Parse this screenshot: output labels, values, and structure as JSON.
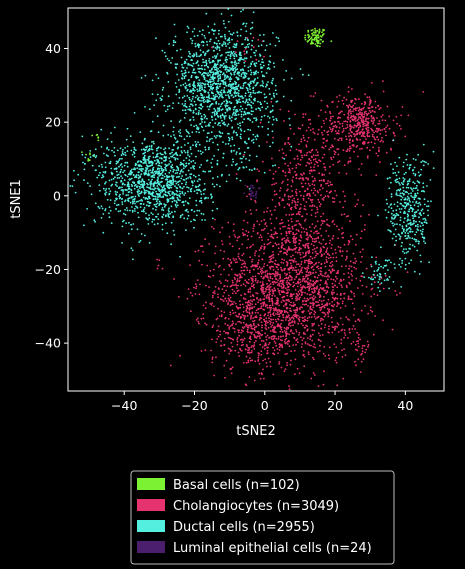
{
  "chart_data": {
    "type": "scatter",
    "xlabel": "tSNE2",
    "ylabel": "tSNE1",
    "xlim": [
      -56,
      51
    ],
    "ylim": [
      -53,
      51
    ],
    "xticks": [
      -40,
      -20,
      0,
      20,
      40
    ],
    "yticks": [
      40,
      20,
      0,
      -20,
      -40
    ],
    "xtick_labels": [
      "−40",
      "−20",
      "0",
      "20",
      "40"
    ],
    "ytick_labels": [
      "40",
      "20",
      "0",
      "−20",
      "−40"
    ],
    "legend_position": "below",
    "series": [
      {
        "name": "Basal cells (n=102)",
        "color": "#7CF032",
        "n": 102,
        "clusters": [
          {
            "cx": 14.5,
            "cy": 43.0,
            "sx": 1.6,
            "sy": 1.4,
            "n": 86
          },
          {
            "cx": -50.0,
            "cy": 10.5,
            "sx": 0.8,
            "sy": 1.2,
            "n": 10
          },
          {
            "cx": -47.5,
            "cy": 16.0,
            "sx": 0.4,
            "sy": 0.8,
            "n": 6
          }
        ]
      },
      {
        "name": "Cholangiocytes (n=3049)",
        "color": "#E4336E",
        "n": 3049,
        "clusters": [
          {
            "cx": 7.0,
            "cy": -25.0,
            "sx": 10.5,
            "sy": 10.0,
            "n": 1900
          },
          {
            "cx": 27.0,
            "cy": 19.5,
            "sx": 5.0,
            "sy": 4.0,
            "n": 420
          },
          {
            "cx": 12.0,
            "cy": 4.0,
            "sx": 6.5,
            "sy": 9.0,
            "n": 430
          },
          {
            "cx": -3.0,
            "cy": -38.0,
            "sx": 6.0,
            "sy": 4.0,
            "n": 240
          },
          {
            "cx": 27.0,
            "cy": -41.0,
            "sx": 1.5,
            "sy": 2.0,
            "n": 30
          },
          {
            "cx": -30.0,
            "cy": -19.0,
            "sx": 1.0,
            "sy": 1.0,
            "n": 5
          },
          {
            "cx": -20.0,
            "cy": -24.0,
            "sx": 1.5,
            "sy": 2.5,
            "n": 8
          },
          {
            "cx": -5.0,
            "cy": 40.0,
            "sx": 4.0,
            "sy": 2.0,
            "n": 16
          }
        ]
      },
      {
        "name": "Ductal cells (n=2955)",
        "color": "#55EFE0",
        "n": 2955,
        "clusters": [
          {
            "cx": -12.0,
            "cy": 30.0,
            "sx": 7.5,
            "sy": 8.0,
            "n": 1350
          },
          {
            "cx": -32.0,
            "cy": 4.0,
            "sx": 8.0,
            "sy": 6.0,
            "n": 1150
          },
          {
            "cx": 41.0,
            "cy": -4.0,
            "sx": 3.0,
            "sy": 7.5,
            "n": 380
          },
          {
            "cx": 33.0,
            "cy": -21.0,
            "sx": 2.5,
            "sy": 2.5,
            "n": 50
          },
          {
            "cx": -6.0,
            "cy": 10.0,
            "sx": 2.0,
            "sy": 3.0,
            "n": 25
          }
        ]
      },
      {
        "name": "Luminal epithelial cells (n=24)",
        "color": "#4B1E6E",
        "n": 24,
        "clusters": [
          {
            "cx": -3.5,
            "cy": 1.0,
            "sx": 0.8,
            "sy": 1.0,
            "n": 24
          }
        ]
      }
    ]
  }
}
